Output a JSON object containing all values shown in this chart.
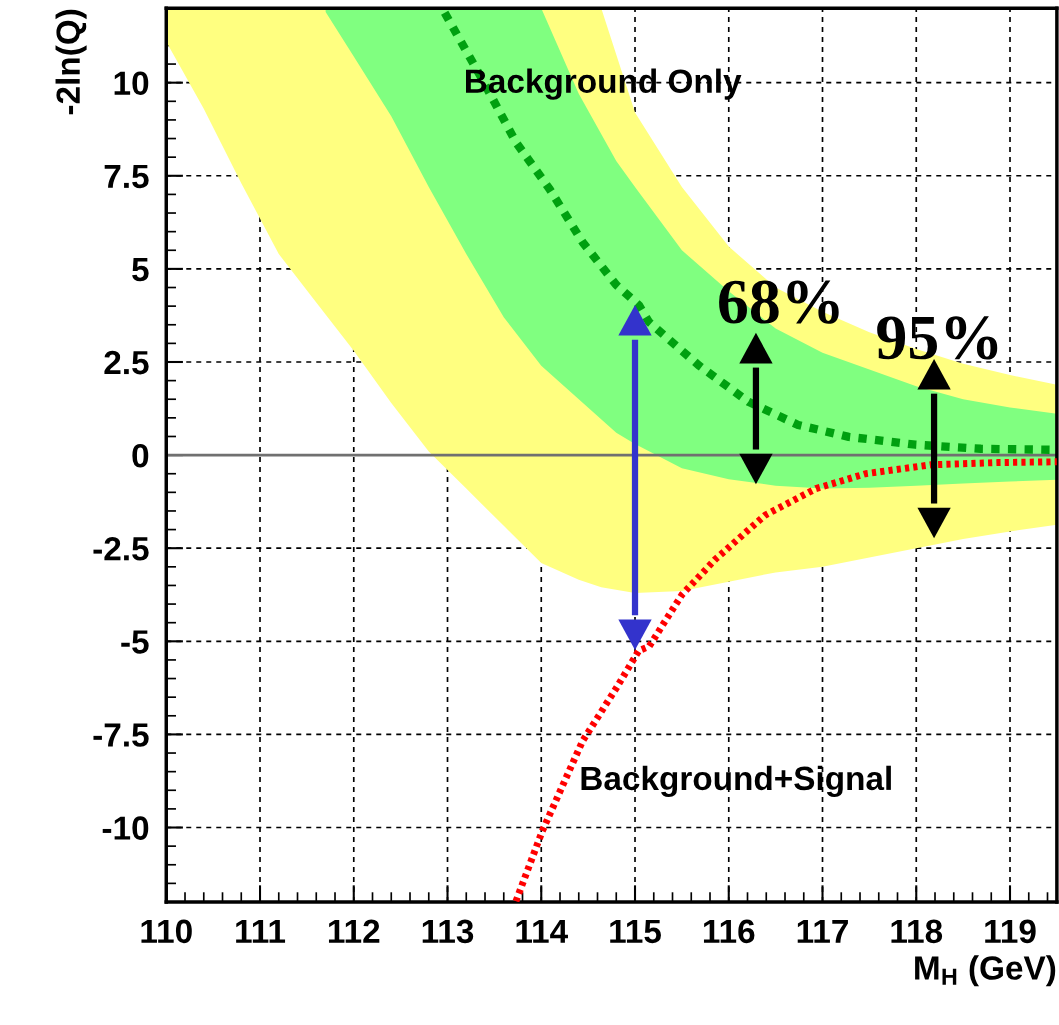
{
  "chart_data": {
    "type": "line",
    "xlabel": "M$_{H}$ (GeV)",
    "ylabel": "-2ln(Q)",
    "xlim": [
      110,
      119.5
    ],
    "ylim": [
      -12,
      12
    ],
    "xticks": [
      110,
      111,
      112,
      113,
      114,
      115,
      116,
      117,
      118,
      119
    ],
    "yticks": [
      -10,
      -7.5,
      -5,
      -2.5,
      0,
      2.5,
      5,
      7.5,
      10
    ],
    "grid": true,
    "ref_lines": [
      {
        "axis": "y",
        "value": 0,
        "color": "#707070",
        "line_style": "solid"
      }
    ],
    "series": [
      {
        "type": "area",
        "color": "#ffff80",
        "x": [
          110,
          110.4,
          110.8,
          111.2,
          111.6,
          112,
          112.4,
          112.8,
          113.2,
          113.6,
          114,
          114.4,
          114.64,
          115,
          115.5,
          116,
          116.5,
          117,
          117.5,
          118,
          118.5,
          119,
          119.5
        ],
        "values": [
          null,
          null,
          null,
          null,
          null,
          null,
          null,
          null,
          null,
          null,
          null,
          null,
          null,
          null,
          null,
          null,
          null,
          null,
          null,
          null,
          null,
          null,
          null
        ],
        "lower": [
          11.1,
          9.3,
          7.3,
          5.4,
          4.1,
          2.8,
          1.4,
          0.1,
          -0.9,
          -1.9,
          -2.9,
          -3.35,
          -3.55,
          -3.7,
          -3.65,
          -3.4,
          -3.15,
          -3.0,
          -2.75,
          -2.5,
          -2.25,
          -2.05,
          -1.87
        ],
        "upper": [
          12,
          12,
          12,
          12,
          12,
          12,
          12,
          12,
          12,
          12,
          12,
          12,
          12,
          9.2,
          7.2,
          5.6,
          4.5,
          3.85,
          3.3,
          2.85,
          2.45,
          2.15,
          1.89
        ]
      },
      {
        "type": "area",
        "color": "#80ff80",
        "x": [
          111.7,
          112,
          112.4,
          112.8,
          113.2,
          113.6,
          114,
          114.4,
          114.8,
          115,
          115.5,
          116,
          116.5,
          117,
          117.5,
          118,
          118.5,
          119,
          119.5
        ],
        "values": [
          null,
          null,
          null,
          null,
          null,
          null,
          null,
          null,
          null,
          null,
          null,
          null,
          null,
          null,
          null,
          null,
          null,
          null,
          null
        ],
        "lower": [
          11.9,
          10.7,
          9.1,
          7.2,
          5.4,
          3.7,
          2.4,
          1.5,
          0.6,
          0.3,
          -0.35,
          -0.65,
          -0.82,
          -0.9,
          -0.88,
          -0.82,
          -0.76,
          -0.71,
          -0.66
        ],
        "upper": [
          12,
          12,
          12,
          12,
          12,
          12,
          12,
          9.7,
          7.9,
          7.2,
          5.5,
          4.4,
          3.4,
          2.75,
          2.3,
          1.85,
          1.5,
          1.28,
          1.11
        ]
      },
      {
        "color": "#00a010",
        "line_style": "dashed",
        "x": [
          112.97,
          113.37,
          113.73,
          114.09,
          114.44,
          114.8,
          115.04,
          115.15,
          115.68,
          116.21,
          116.74,
          117.28,
          117.99,
          118.69,
          119.5
        ],
        "values": [
          11.88,
          10.09,
          8.4,
          7.14,
          5.72,
          4.57,
          4.03,
          3.57,
          2.41,
          1.43,
          0.81,
          0.49,
          0.28,
          0.17,
          0.14
        ]
      },
      {
        "color": "#ff0000",
        "line_style": "dotted",
        "x": [
          113.73,
          114.01,
          114.44,
          114.8,
          115.04,
          115.15,
          115.5,
          115.86,
          116.39,
          116.93,
          117.46,
          118.16,
          118.87,
          119.5
        ],
        "values": [
          -11.98,
          -10.1,
          -7.68,
          -6.26,
          -5.25,
          -5.14,
          -3.75,
          -2.79,
          -1.61,
          -0.9,
          -0.5,
          -0.26,
          -0.2,
          -0.18
        ]
      },
      {
        "type": "line",
        "color": "#3333cc",
        "x": [
          115,
          115
        ],
        "values": [
          3.1,
          -4.3
        ]
      },
      {
        "type": "line",
        "color": "#000000",
        "x": [
          116.29,
          116.29
        ],
        "values": [
          2.35,
          0.15
        ]
      },
      {
        "type": "line",
        "color": "#000000",
        "x": [
          118.19,
          118.19
        ],
        "values": [
          1.65,
          -1.3
        ]
      }
    ],
    "annotations": [
      "Background Only",
      "Background+Signal",
      "68%",
      "95%"
    ]
  }
}
